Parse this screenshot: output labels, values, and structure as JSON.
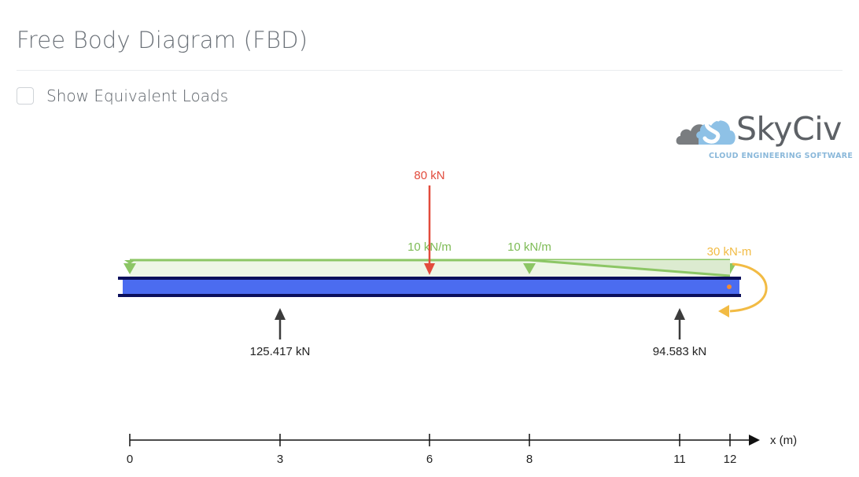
{
  "header": {
    "title": "Free Body Diagram (FBD)"
  },
  "options": {
    "show_equivalent_loads": {
      "label": "Show Equivalent Loads",
      "checked": false
    }
  },
  "logo": {
    "brand": "SkyCiv",
    "tagline": "CLOUD ENGINEERING SOFTWARE"
  },
  "colors": {
    "beam_fill": "#4b6cf0",
    "beam_flange": "#0b0f5c",
    "point_load": "#e24b3c",
    "distributed_load": "#8cc665",
    "moment": "#f2bb44",
    "reaction": "#3c3c3c",
    "node": "#f28a33"
  },
  "diagram": {
    "beam": {
      "start": 0,
      "end": 12
    },
    "point_loads": [
      {
        "x": 6,
        "label": "80 kN"
      }
    ],
    "distributed_loads": [
      {
        "label": "10 kN/m",
        "from": 0,
        "to": 12,
        "shape": "uniform"
      },
      {
        "label": "10 kN/m",
        "from": 8,
        "to": 12,
        "shape": "triangular"
      }
    ],
    "moments": [
      {
        "x": 12,
        "label": "30 kN-m",
        "direction": "clockwise"
      }
    ],
    "reactions": [
      {
        "x": 3,
        "label": "125.417 kN"
      },
      {
        "x": 11,
        "label": "94.583 kN"
      }
    ],
    "axis": {
      "label": "x (m)",
      "ticks": [
        "0",
        "3",
        "6",
        "8",
        "11",
        "12"
      ]
    }
  }
}
